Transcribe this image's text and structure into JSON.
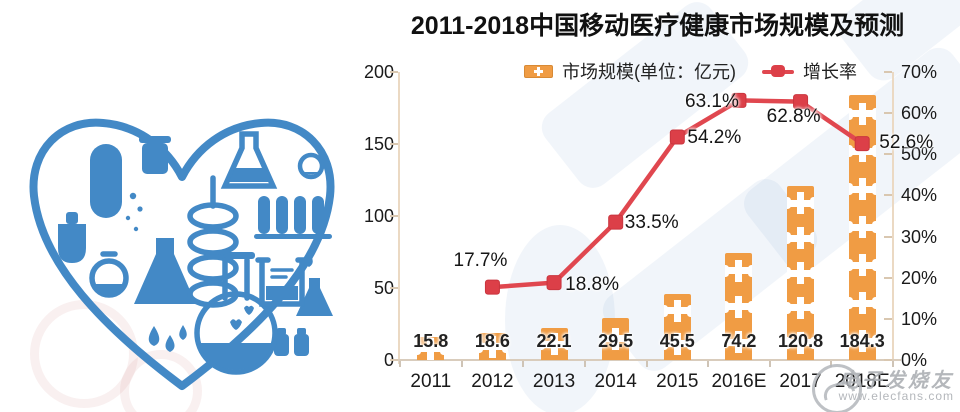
{
  "title": "2011-2018中国移动医疗健康市场规模及预测",
  "colors": {
    "bar_orange": "#F09C44",
    "line_red": "#E0474F",
    "marker_red": "#DC3F48",
    "heart_blue": "#4389C6",
    "axis_tan": "#EBD9C3"
  },
  "chart_data": {
    "type": "bar+line",
    "title": "2011-2018中国移动医疗健康市场规模及预测",
    "categories": [
      "2011",
      "2012",
      "2013",
      "2014",
      "2015",
      "2016E",
      "2017",
      "2018E"
    ],
    "series": [
      {
        "name": "市场规模(单位：亿元)",
        "type": "bar",
        "axis": "left",
        "values": [
          15.8,
          18.6,
          22.1,
          29.5,
          45.5,
          74.2,
          120.8,
          184.3
        ]
      },
      {
        "name": "增长率",
        "type": "line",
        "axis": "right",
        "unit": "%",
        "values": [
          null,
          17.7,
          18.8,
          33.5,
          54.2,
          63.1,
          62.8,
          52.6
        ]
      }
    ],
    "left_axis": {
      "min": 0,
      "max": 200,
      "ticks": [
        "200",
        "150",
        "100",
        "50",
        "0"
      ]
    },
    "right_axis": {
      "min": 0,
      "max": 70,
      "ticks": [
        "70%",
        "60%",
        "50%",
        "40%",
        "30%",
        "20%",
        "10%",
        "0%"
      ]
    },
    "grid": false,
    "legend_position": "top"
  },
  "watermark": {
    "site_name": "电子发烧友",
    "url": "www.elecfans.com"
  }
}
